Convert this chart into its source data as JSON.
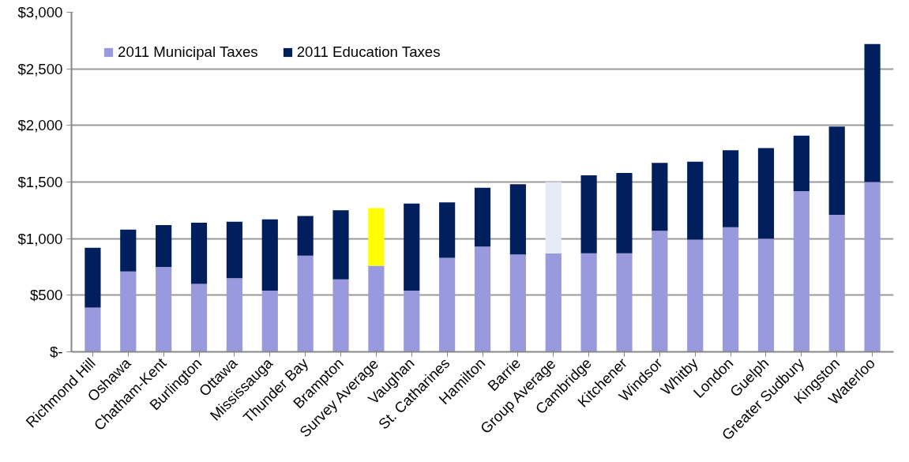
{
  "chart_data": {
    "type": "bar",
    "stacked": true,
    "categories": [
      "Richmond Hill",
      "Oshawa",
      "Chatham-Kent",
      "Burlington",
      "Ottawa",
      "Mississauga",
      "Thunder Bay",
      "Brampton",
      "Survey Average",
      "Vaughan",
      "St. Catharines",
      "Hamilton",
      "Barrie",
      "Group Average",
      "Cambridge",
      "Kitchener",
      "Windsor",
      "Whitby",
      "London",
      "Guelph",
      "Greater Sudbury",
      "Kingston",
      "Waterloo"
    ],
    "series": [
      {
        "name": "2011 Municipal Taxes",
        "color": "#9999dd",
        "values": [
          390,
          710,
          750,
          600,
          650,
          540,
          850,
          640,
          760,
          540,
          830,
          930,
          860,
          870,
          870,
          870,
          1070,
          990,
          1100,
          1000,
          1420,
          1210,
          1500
        ]
      },
      {
        "name": "2011 Education Taxes",
        "color": "#001f5c",
        "colors": [
          "#001f5c",
          "#001f5c",
          "#001f5c",
          "#001f5c",
          "#001f5c",
          "#001f5c",
          "#001f5c",
          "#001f5c",
          "#ffff00",
          "#001f5c",
          "#001f5c",
          "#001f5c",
          "#001f5c",
          "#e4ebf7",
          "#001f5c",
          "#001f5c",
          "#001f5c",
          "#001f5c",
          "#001f5c",
          "#001f5c",
          "#001f5c",
          "#001f5c",
          "#001f5c"
        ],
        "values": [
          530,
          370,
          370,
          540,
          500,
          630,
          350,
          610,
          510,
          770,
          490,
          520,
          620,
          630,
          690,
          710,
          600,
          690,
          680,
          800,
          490,
          780,
          1220
        ]
      }
    ],
    "ylim": [
      0,
      3000
    ],
    "yticks": [
      {
        "value": 0,
        "label": "$-"
      },
      {
        "value": 500,
        "label": "$500"
      },
      {
        "value": 1000,
        "label": "$1,000"
      },
      {
        "value": 1500,
        "label": "$1,500"
      },
      {
        "value": 2000,
        "label": "$2,000"
      },
      {
        "value": 2500,
        "label": "$2,500"
      },
      {
        "value": 3000,
        "label": "$3,000"
      }
    ],
    "grid": "y",
    "legend": "top left"
  }
}
